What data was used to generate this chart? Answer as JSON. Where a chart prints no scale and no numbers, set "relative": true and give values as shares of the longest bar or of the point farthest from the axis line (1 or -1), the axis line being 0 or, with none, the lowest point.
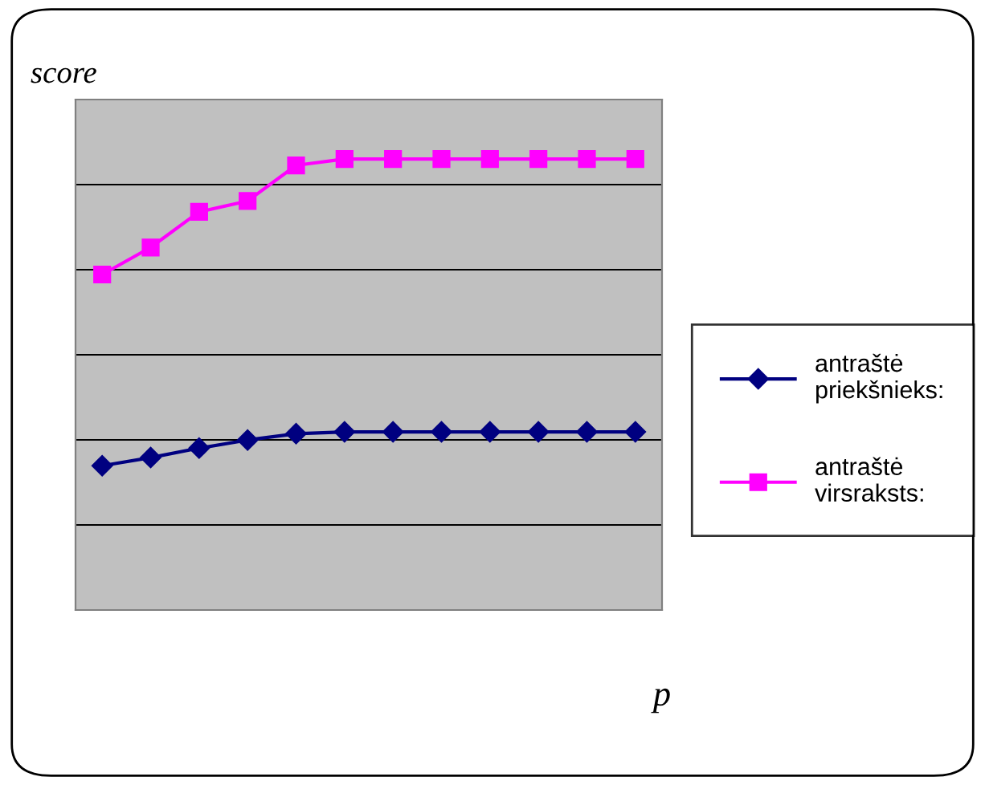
{
  "chart_data": {
    "type": "line",
    "relative": true,
    "xlabel": "p",
    "ylabel": "score",
    "categories": [
      null,
      null,
      null,
      null,
      null,
      null,
      null,
      null,
      null,
      null,
      null,
      null
    ],
    "series": [
      {
        "name": "antraštė\npriekšnieks:",
        "color": "#000080",
        "marker": "diamond",
        "values": [
          0.32,
          0.338,
          0.359,
          0.377,
          0.391,
          0.395,
          0.395,
          0.395,
          0.395,
          0.395,
          0.395,
          0.395
        ]
      },
      {
        "name": "antraštė\nvirsraksts:",
        "color": "#ff00ff",
        "marker": "square",
        "values": [
          0.744,
          0.804,
          0.883,
          0.907,
          0.986,
          1,
          1,
          1,
          1,
          1,
          1,
          1
        ]
      }
    ],
    "grid": "y",
    "legend": "right",
    "line_style": "solid"
  }
}
